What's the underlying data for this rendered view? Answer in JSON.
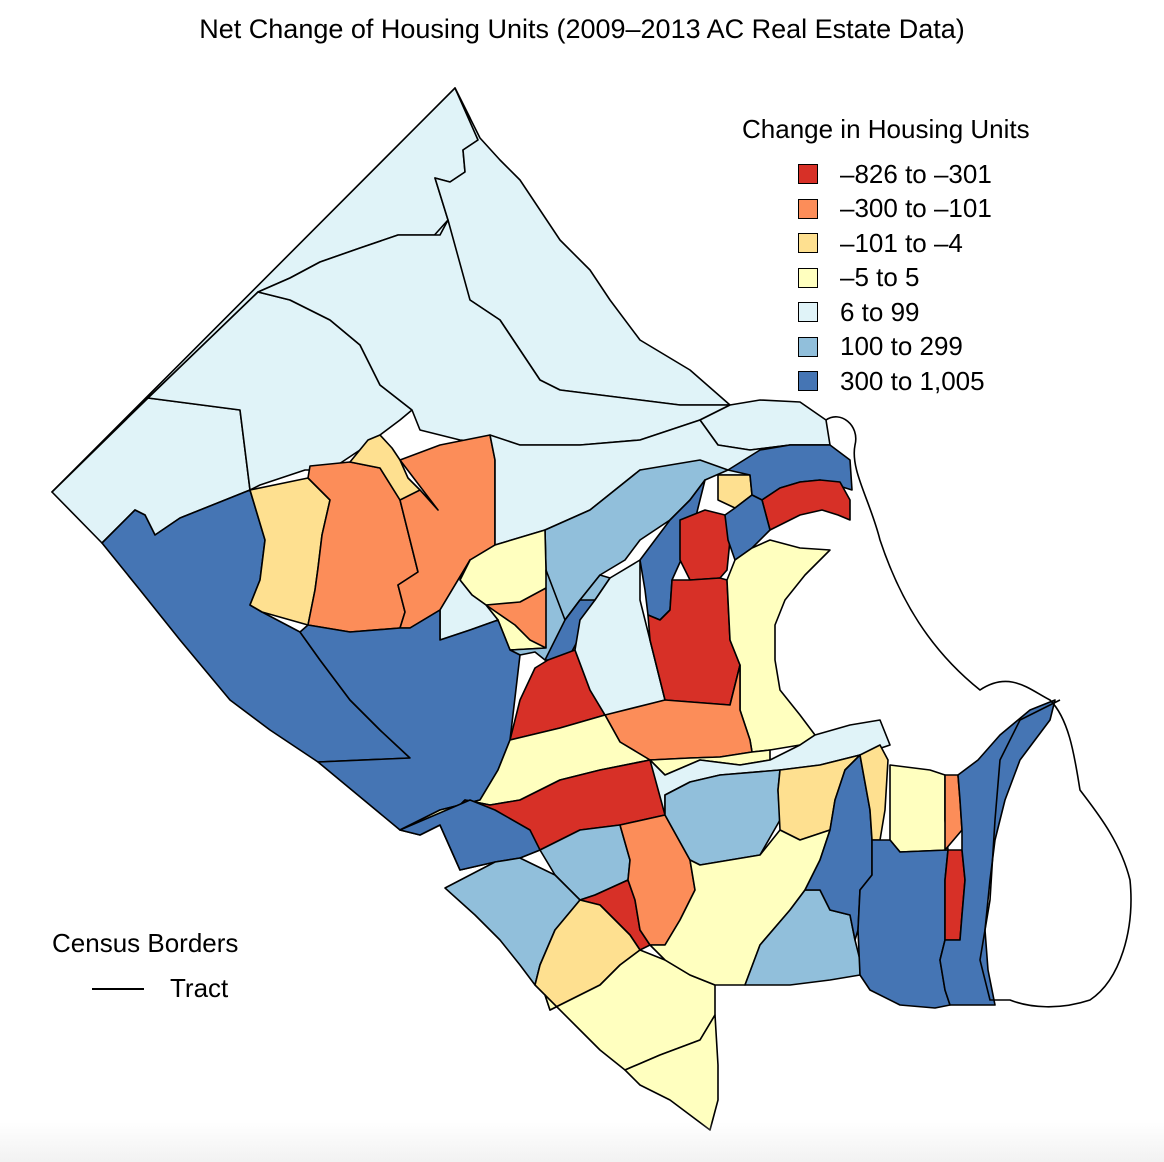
{
  "title": "Net Change of Housing Units (2009–2013 AC Real Estate Data)",
  "legend": {
    "title": "Change in Housing Units",
    "items": [
      {
        "label": "–826 to –301",
        "color": "#d73027"
      },
      {
        "label": "–300 to –101",
        "color": "#fc8d59"
      },
      {
        "label": "–101 to –4",
        "color": "#fee090"
      },
      {
        "label": "–5 to 5",
        "color": "#ffffbf"
      },
      {
        "label": "6 to 99",
        "color": "#e0f3f8"
      },
      {
        "label": "100 to 299",
        "color": "#91bfdb"
      },
      {
        "label": "300 to 1,005",
        "color": "#4575b4"
      }
    ]
  },
  "border_legend": {
    "title": "Census Borders",
    "line_label": "Tract"
  },
  "map": {
    "tracts": [
      {
        "name": "north-1",
        "cls": 4
      },
      {
        "name": "north-2",
        "cls": 4
      },
      {
        "name": "northwest-1",
        "cls": 4
      },
      {
        "name": "northwest-2",
        "cls": 4
      },
      {
        "name": "northeast-1",
        "cls": 4
      },
      {
        "name": "northeast-2",
        "cls": 4
      },
      {
        "name": "west-edge",
        "cls": 6
      },
      {
        "name": "west-yellow-orange",
        "cls": 2
      },
      {
        "name": "west-orange",
        "cls": 1
      },
      {
        "name": "west-small-yellow-orange",
        "cls": 2
      },
      {
        "name": "central-orange",
        "cls": 1
      },
      {
        "name": "central-light-1",
        "cls": 4
      },
      {
        "name": "central-blue-1",
        "cls": 5
      },
      {
        "name": "central-yellow-1",
        "cls": 3
      },
      {
        "name": "central-small-orange",
        "cls": 1
      },
      {
        "name": "central-light-2",
        "cls": 4
      },
      {
        "name": "central-blue-2",
        "cls": 5
      },
      {
        "name": "central-dark-blue-1",
        "cls": 6
      },
      {
        "name": "central-red-1",
        "cls": 0
      },
      {
        "name": "central-light-3",
        "cls": 4
      },
      {
        "name": "central-dark-blue-2",
        "cls": 6
      },
      {
        "name": "central-red-2",
        "cls": 0
      },
      {
        "name": "central-red-3",
        "cls": 0
      },
      {
        "name": "east-small-yellow-orange",
        "cls": 2
      },
      {
        "name": "east-dark-blue-1",
        "cls": 6
      },
      {
        "name": "east-red",
        "cls": 0
      },
      {
        "name": "east-dark-blue-2",
        "cls": 6
      },
      {
        "name": "east-yellow-1",
        "cls": 3
      },
      {
        "name": "central-orange-2",
        "cls": 1
      },
      {
        "name": "southwest-dark-blue",
        "cls": 6
      },
      {
        "name": "southwest-yellow-1",
        "cls": 3
      },
      {
        "name": "south-red-1",
        "cls": 0
      },
      {
        "name": "south-yellow-1",
        "cls": 3
      },
      {
        "name": "south-light-1",
        "cls": 4
      },
      {
        "name": "south-dark-blue-1",
        "cls": 6
      },
      {
        "name": "south-blue-1",
        "cls": 5
      },
      {
        "name": "south-blue-2",
        "cls": 5
      },
      {
        "name": "south-red-2",
        "cls": 0
      },
      {
        "name": "south-orange",
        "cls": 1
      },
      {
        "name": "south-blue-3",
        "cls": 5
      },
      {
        "name": "south-yellow-orange-1",
        "cls": 2
      },
      {
        "name": "south-yellow-orange-2",
        "cls": 2
      },
      {
        "name": "south-yellow-2",
        "cls": 3
      },
      {
        "name": "south-yellow-3",
        "cls": 3
      },
      {
        "name": "south-yellow-4",
        "cls": 3
      },
      {
        "name": "southeast-blue",
        "cls": 5
      },
      {
        "name": "southeast-dark-blue-1",
        "cls": 6
      },
      {
        "name": "southeast-yellow-orange",
        "cls": 2
      },
      {
        "name": "southeast-yellow",
        "cls": 3
      },
      {
        "name": "southeast-dark-blue-2",
        "cls": 6
      },
      {
        "name": "southeast-orange",
        "cls": 1
      },
      {
        "name": "southeast-red",
        "cls": 0
      },
      {
        "name": "southeast-dark-blue-3",
        "cls": 6
      }
    ]
  }
}
